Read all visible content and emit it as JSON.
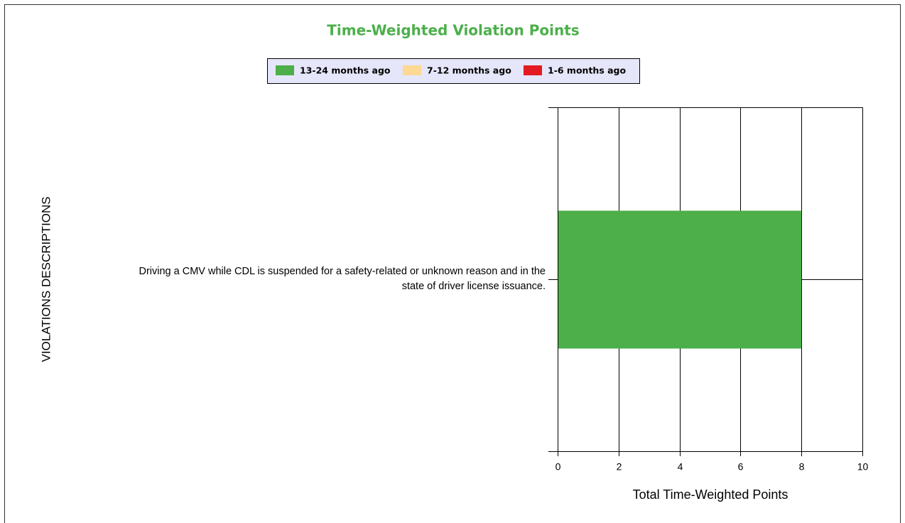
{
  "chart_data": {
    "type": "bar",
    "orientation": "horizontal",
    "stacked": true,
    "title": "Time-Weighted Violation Points",
    "xlabel": "Total Time-Weighted Points",
    "ylabel": "VIOLATIONS DESCRIPTIONS",
    "categories": [
      "Driving a CMV while CDL is suspended for a safety-related or unknown reason and in the state of driver  license issuance."
    ],
    "series": [
      {
        "name": "13-24 months ago",
        "color": "#4caf4a",
        "values": [
          8
        ]
      },
      {
        "name": "7-12 months ago",
        "color": "#fdd993",
        "values": [
          0
        ]
      },
      {
        "name": "1-6 months ago",
        "color": "#e31b23",
        "values": [
          0
        ]
      }
    ],
    "xlim": [
      0,
      10
    ],
    "xticks": [
      0,
      2,
      4,
      6,
      8,
      10
    ],
    "grid": true,
    "legend": "top"
  }
}
